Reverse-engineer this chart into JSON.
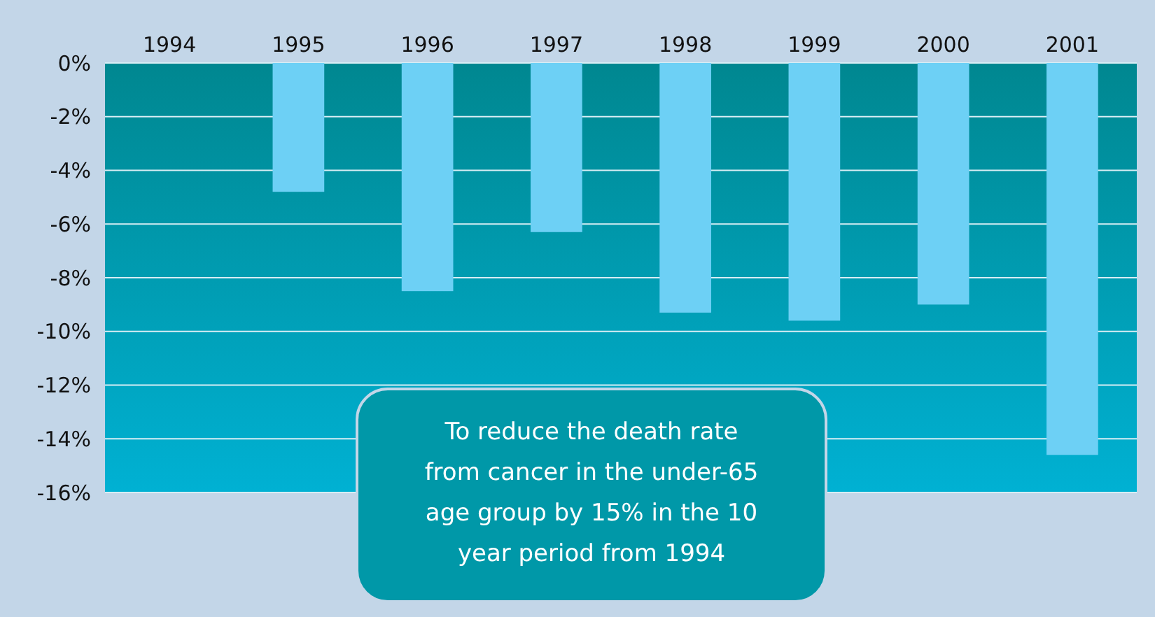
{
  "chart_data": {
    "type": "bar",
    "categories": [
      "1994",
      "1995",
      "1996",
      "1997",
      "1998",
      "1999",
      "2000",
      "2001"
    ],
    "values": [
      0,
      -4.8,
      -8.5,
      -6.3,
      -9.3,
      -9.6,
      -9.0,
      -14.6
    ],
    "color": "#6dd0f5",
    "ylim": [
      -16,
      0
    ],
    "yticks": [
      {
        "value": 0,
        "label": "0%"
      },
      {
        "value": -2,
        "label": "-2%"
      },
      {
        "value": -4,
        "label": "-4%"
      },
      {
        "value": -6,
        "label": "-6%"
      },
      {
        "value": -8,
        "label": "-8%"
      },
      {
        "value": -10,
        "label": "-10%"
      },
      {
        "value": -12,
        "label": "-12%"
      },
      {
        "value": -14,
        "label": "-14%"
      },
      {
        "value": -16,
        "label": "-16%"
      }
    ],
    "grid": "y",
    "annotations": [
      "To reduce the death rate\nfrom cancer in the under-65\nage group by 15% in the 10\nyear period from 1994"
    ]
  }
}
